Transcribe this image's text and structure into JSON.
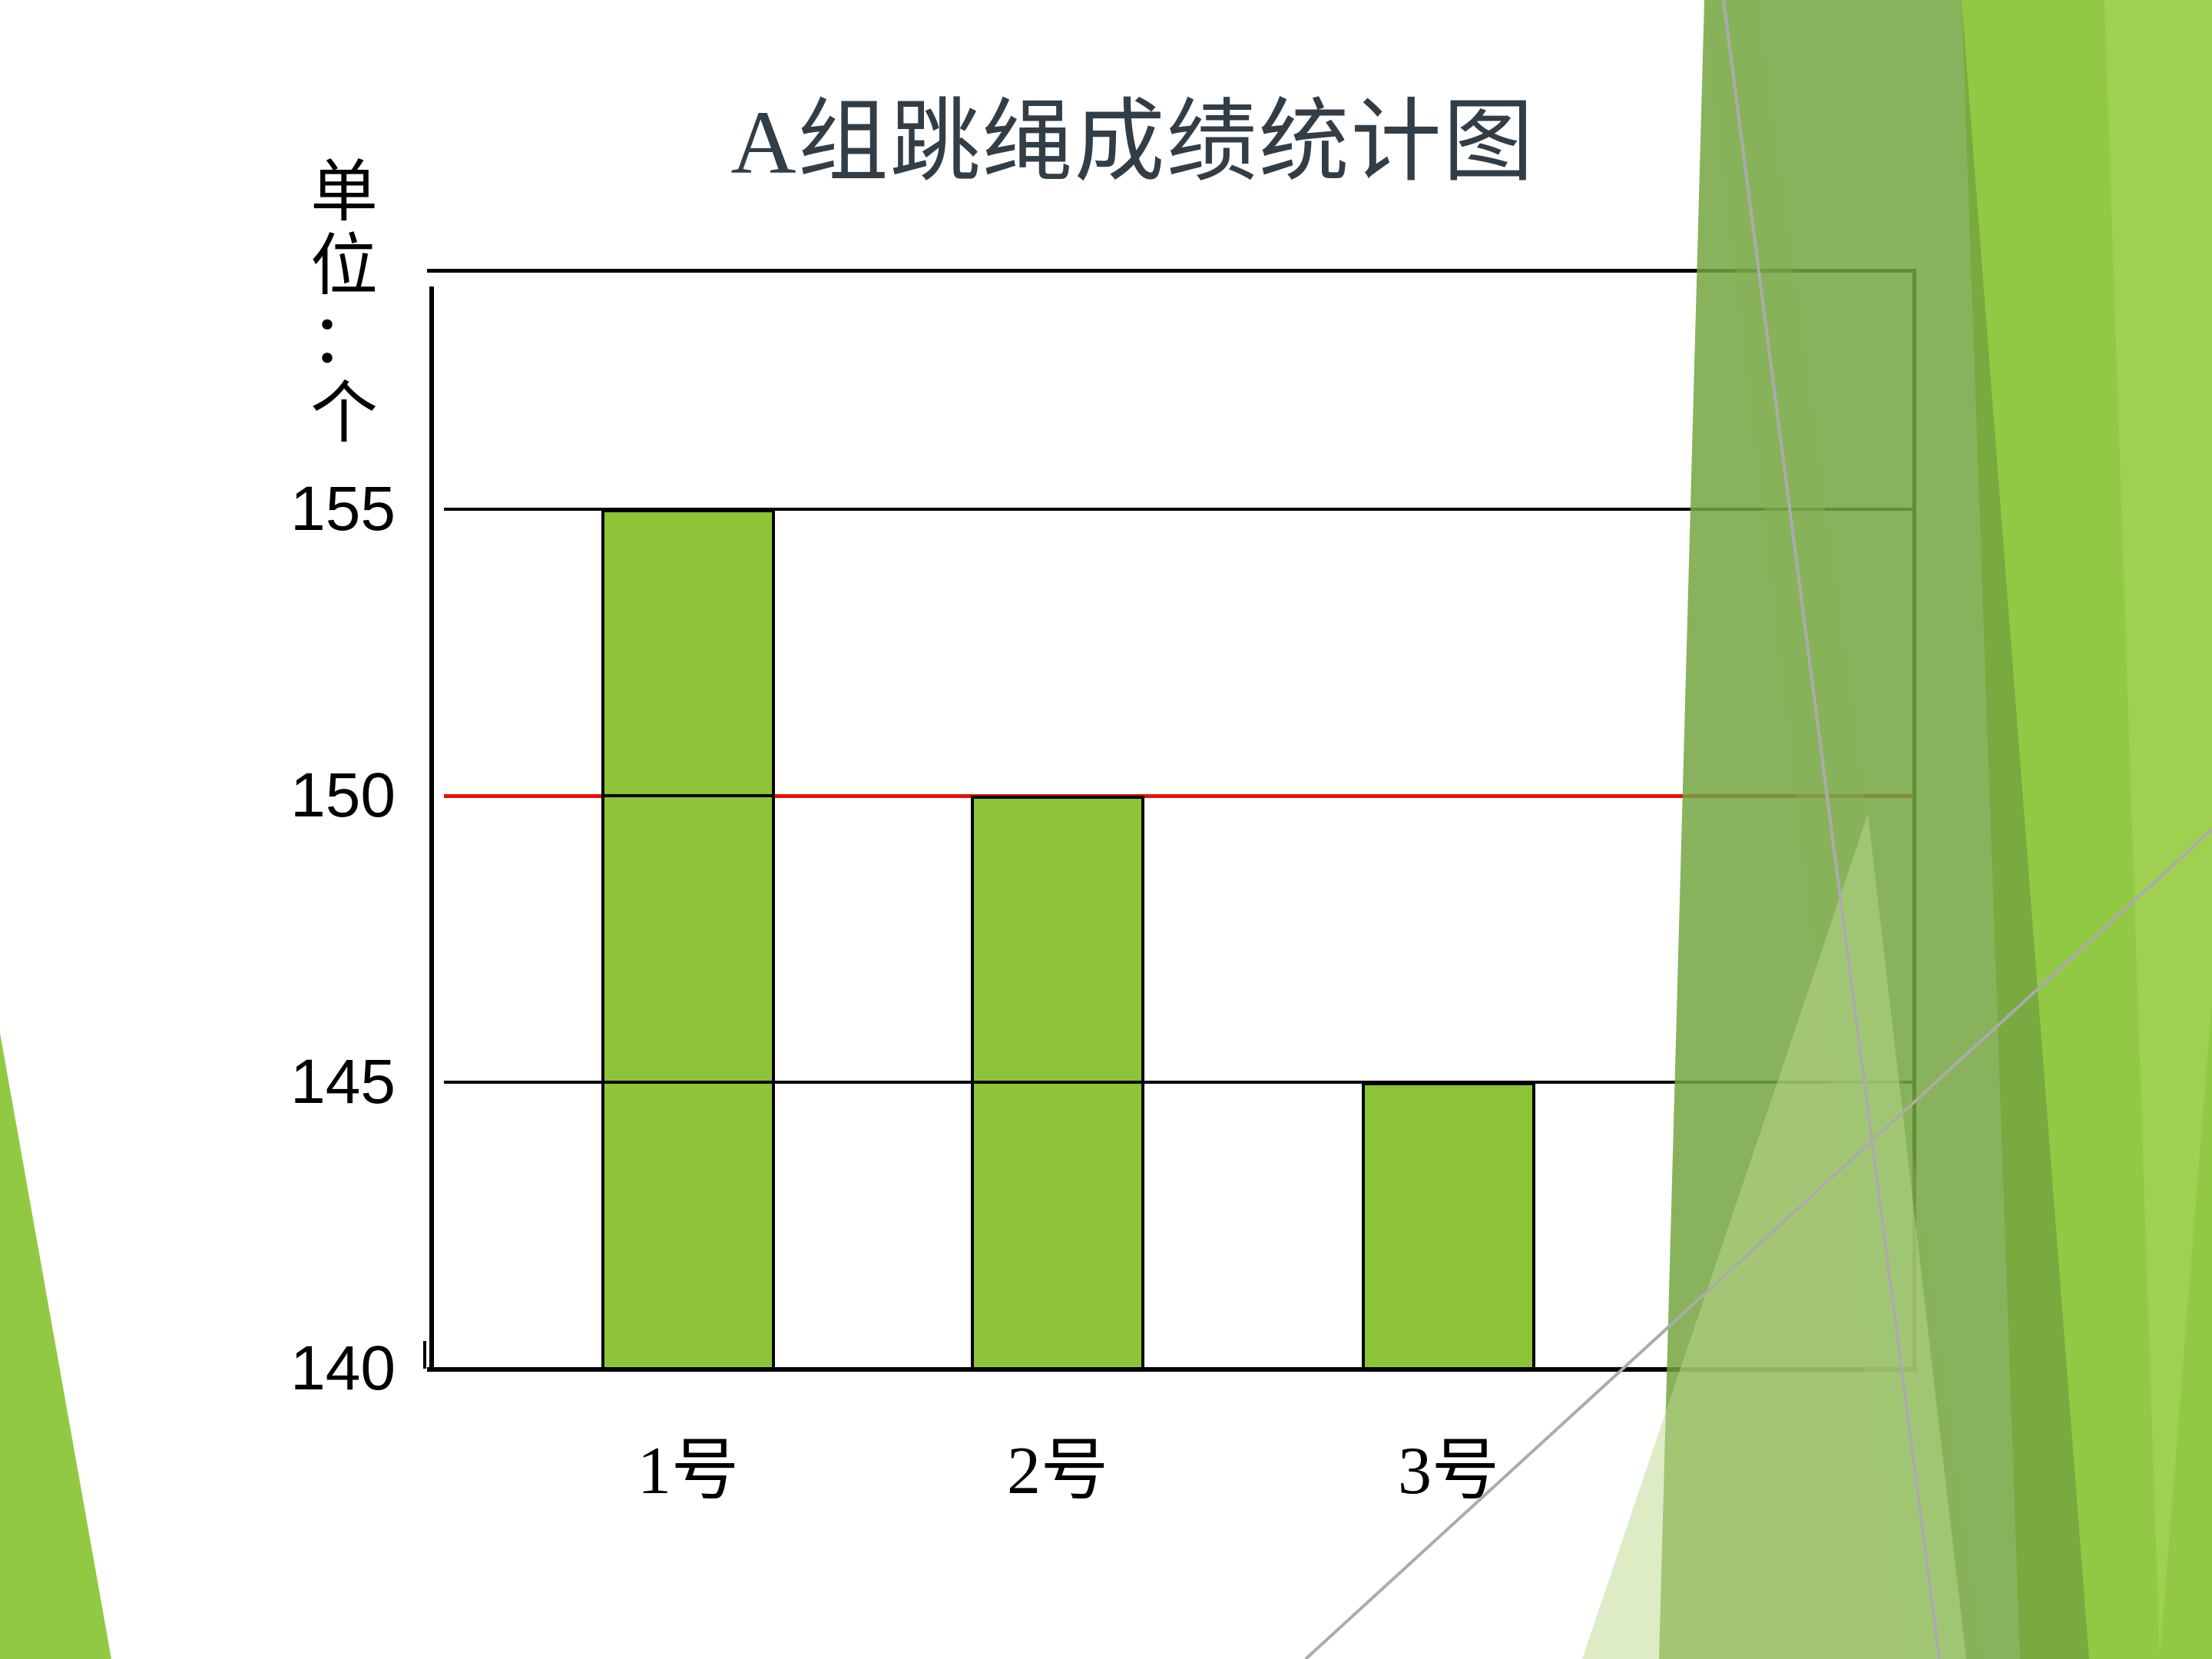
{
  "slide": {
    "title": "A组跳绳成绩统计图",
    "title_color": "#323e47",
    "background_color": "#ffffff",
    "decoration_greens": [
      "#8ec73c",
      "#73a440",
      "#bcd98c",
      "#86b257"
    ],
    "decoration_line_color": "#ababab"
  },
  "chart_data": {
    "type": "bar",
    "title": "A组跳绳成绩统计图",
    "unit_label": "单位：个",
    "categories": [
      "1号",
      "2号",
      "3号"
    ],
    "values": [
      155,
      150,
      145
    ],
    "ylim": [
      140,
      159
    ],
    "yticks": [
      140,
      145,
      150,
      155
    ],
    "grid": "horizontal",
    "legend": "none",
    "reference_line": {
      "value": 150,
      "color": "#e3120b"
    },
    "bar_color": "#8dc437",
    "bar_outline_color": "#000000",
    "axis_color": "#000000",
    "tick_label_color": "#000000"
  }
}
